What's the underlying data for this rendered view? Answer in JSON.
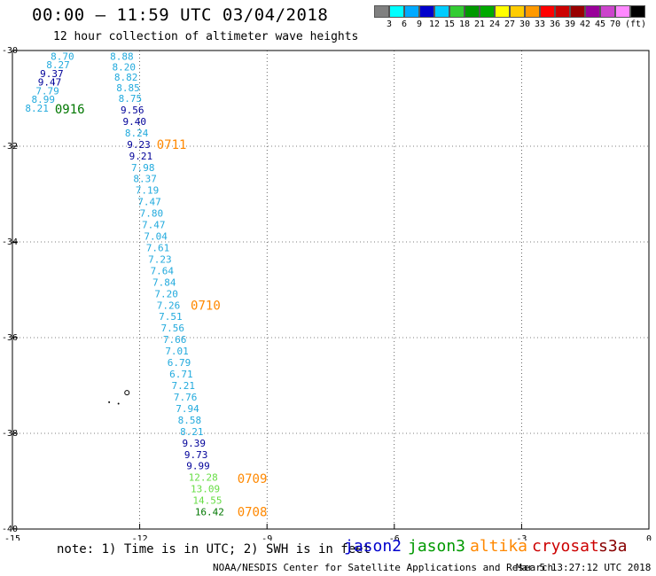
{
  "header": {
    "title": "00:00 – 11:59 UTC 03/04/2018",
    "subtitle": "12 hour collection of altimeter wave heights"
  },
  "legend": {
    "colors": [
      "#808080",
      "#00ffff",
      "#00aaff",
      "#0000cc",
      "#00ccff",
      "#33cc33",
      "#009900",
      "#00aa00",
      "#ffff00",
      "#ffcc00",
      "#ff9900",
      "#ff0000",
      "#cc0000",
      "#990000",
      "#990099",
      "#cc44cc",
      "#ff88ff",
      "#000000"
    ],
    "labels": [
      "3",
      "6",
      "9",
      "12",
      "15",
      "18",
      "21",
      "24",
      "27",
      "30",
      "33",
      "36",
      "39",
      "42",
      "45",
      "70",
      "(ft)"
    ]
  },
  "axes": {
    "x_ticks": [
      "-15",
      "-12",
      "-9",
      "-6",
      "-3",
      "0"
    ],
    "y_ticks": [
      "-30",
      "-32",
      "-34",
      "-36",
      "-38",
      "-40"
    ]
  },
  "chart_data": {
    "type": "scatter",
    "xlim": [
      -15,
      0
    ],
    "ylim": [
      -40,
      -30
    ],
    "grid": true,
    "colors": {
      "cyan": "#22aadd",
      "navy": "#000099",
      "lightgreen": "#66dd44",
      "darkgreen": "#007700",
      "orange": "#ff8800"
    },
    "points": [
      {
        "x": -14.1,
        "y": -30.12,
        "v": "8.70",
        "c": "cyan"
      },
      {
        "x": -14.2,
        "y": -30.3,
        "v": "8.27",
        "c": "cyan"
      },
      {
        "x": -14.35,
        "y": -30.48,
        "v": "9.37",
        "c": "navy"
      },
      {
        "x": -14.4,
        "y": -30.66,
        "v": "9.47",
        "c": "navy"
      },
      {
        "x": -14.45,
        "y": -30.84,
        "v": "7.79",
        "c": "cyan"
      },
      {
        "x": -14.55,
        "y": -31.02,
        "v": "8.99",
        "c": "cyan"
      },
      {
        "x": -14.7,
        "y": -31.2,
        "v": "8.21",
        "c": "cyan"
      },
      {
        "x": -12.7,
        "y": -30.12,
        "v": "8.88",
        "c": "cyan"
      },
      {
        "x": -12.65,
        "y": -30.34,
        "v": "8.20",
        "c": "cyan"
      },
      {
        "x": -12.6,
        "y": -30.56,
        "v": "8.82",
        "c": "cyan"
      },
      {
        "x": -12.55,
        "y": -30.78,
        "v": "8.85",
        "c": "cyan"
      },
      {
        "x": -12.5,
        "y": -31.0,
        "v": "8.75",
        "c": "cyan"
      },
      {
        "x": -12.45,
        "y": -31.24,
        "v": "9.56",
        "c": "navy"
      },
      {
        "x": -12.4,
        "y": -31.48,
        "v": "9.40",
        "c": "navy"
      },
      {
        "x": -12.35,
        "y": -31.72,
        "v": "8.24",
        "c": "cyan"
      },
      {
        "x": -12.3,
        "y": -31.96,
        "v": "9.23",
        "c": "navy"
      },
      {
        "x": -12.25,
        "y": -32.2,
        "v": "9.21",
        "c": "navy"
      },
      {
        "x": -12.2,
        "y": -32.44,
        "v": "7.98",
        "c": "cyan"
      },
      {
        "x": -12.15,
        "y": -32.68,
        "v": "8.37",
        "c": "cyan"
      },
      {
        "x": -12.1,
        "y": -32.92,
        "v": "7.19",
        "c": "cyan"
      },
      {
        "x": -12.05,
        "y": -33.16,
        "v": "7.47",
        "c": "cyan"
      },
      {
        "x": -12.0,
        "y": -33.4,
        "v": "7.80",
        "c": "cyan"
      },
      {
        "x": -11.95,
        "y": -33.64,
        "v": "7.47",
        "c": "cyan"
      },
      {
        "x": -11.9,
        "y": -33.88,
        "v": "7.04",
        "c": "cyan"
      },
      {
        "x": -11.85,
        "y": -34.12,
        "v": "7.61",
        "c": "cyan"
      },
      {
        "x": -11.8,
        "y": -34.36,
        "v": "7.23",
        "c": "cyan"
      },
      {
        "x": -11.75,
        "y": -34.6,
        "v": "7.64",
        "c": "cyan"
      },
      {
        "x": -11.7,
        "y": -34.84,
        "v": "7.84",
        "c": "cyan"
      },
      {
        "x": -11.65,
        "y": -35.08,
        "v": "7.20",
        "c": "cyan"
      },
      {
        "x": -11.6,
        "y": -35.32,
        "v": "7.26",
        "c": "cyan"
      },
      {
        "x": -11.55,
        "y": -35.56,
        "v": "7.51",
        "c": "cyan"
      },
      {
        "x": -11.5,
        "y": -35.8,
        "v": "7.56",
        "c": "cyan"
      },
      {
        "x": -11.45,
        "y": -36.04,
        "v": "7.66",
        "c": "cyan"
      },
      {
        "x": -11.4,
        "y": -36.28,
        "v": "7.01",
        "c": "cyan"
      },
      {
        "x": -11.35,
        "y": -36.52,
        "v": "6.79",
        "c": "cyan"
      },
      {
        "x": -11.3,
        "y": -36.76,
        "v": "6.71",
        "c": "cyan"
      },
      {
        "x": -11.25,
        "y": -37.0,
        "v": "7.21",
        "c": "cyan"
      },
      {
        "x": -11.2,
        "y": -37.24,
        "v": "7.76",
        "c": "cyan"
      },
      {
        "x": -11.15,
        "y": -37.48,
        "v": "7.94",
        "c": "cyan"
      },
      {
        "x": -11.1,
        "y": -37.72,
        "v": "8.58",
        "c": "cyan"
      },
      {
        "x": -11.05,
        "y": -37.96,
        "v": "8.21",
        "c": "cyan"
      },
      {
        "x": -11.0,
        "y": -38.2,
        "v": "9.39",
        "c": "navy"
      },
      {
        "x": -10.95,
        "y": -38.44,
        "v": "9.73",
        "c": "navy"
      },
      {
        "x": -10.9,
        "y": -38.68,
        "v": "9.99",
        "c": "navy"
      },
      {
        "x": -10.85,
        "y": -38.92,
        "v": "12.28",
        "c": "lightgreen"
      },
      {
        "x": -10.8,
        "y": -39.16,
        "v": "13.09",
        "c": "lightgreen"
      },
      {
        "x": -10.75,
        "y": -39.4,
        "v": "14.55",
        "c": "lightgreen"
      },
      {
        "x": -10.7,
        "y": -39.64,
        "v": "16.42",
        "c": "darkgreen"
      }
    ],
    "time_labels": [
      {
        "x": -14.0,
        "y": -31.22,
        "t": "0916",
        "c": "darkgreen"
      },
      {
        "x": -11.6,
        "y": -31.96,
        "t": "0711",
        "c": "orange"
      },
      {
        "x": -10.8,
        "y": -35.32,
        "t": "0710",
        "c": "orange"
      },
      {
        "x": -9.7,
        "y": -38.94,
        "t": "0709",
        "c": "orange"
      },
      {
        "x": -9.7,
        "y": -39.64,
        "t": "0708",
        "c": "orange"
      }
    ]
  },
  "footer": {
    "note": "note: 1) Time is in UTC; 2) SWH is in feet",
    "satellites": [
      {
        "name": "jason2",
        "color": "#0000cc"
      },
      {
        "name": "jason3",
        "color": "#009900"
      },
      {
        "name": "altika",
        "color": "#ff8800"
      },
      {
        "name": "cryosat",
        "color": "#cc0000"
      },
      {
        "name": "s3a",
        "color": "#880000"
      }
    ],
    "credit": "NOAA/NESDIS Center for Satellite Applications and Research",
    "timestamp": "Mar  5 13:27:12 UTC 2018"
  }
}
